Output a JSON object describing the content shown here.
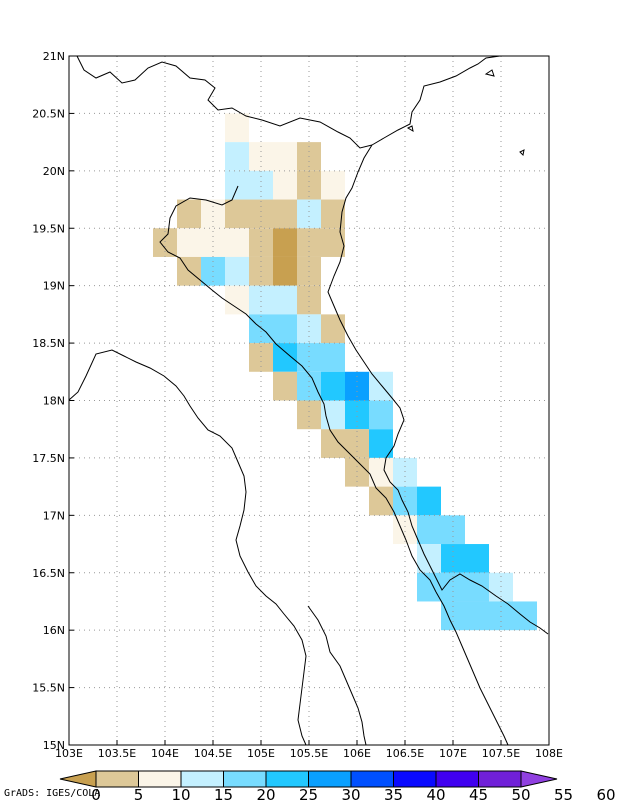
{
  "chart_data": {
    "type": "heatmap",
    "x_ticks": [
      "103E",
      "103.5E",
      "104E",
      "104.5E",
      "105E",
      "105.5E",
      "106E",
      "106.5E",
      "107E",
      "107.5E",
      "108E"
    ],
    "y_ticks": [
      "21N",
      "20.5N",
      "20N",
      "19.5N",
      "19N",
      "18.5N",
      "18N",
      "17.5N",
      "17N",
      "16.5N",
      "16N",
      "15.5N",
      "15N"
    ],
    "xlim": [
      103,
      108
    ],
    "ylim": [
      15,
      21
    ],
    "grid": true,
    "cell_size_deg": 0.25,
    "colorbar": {
      "labels": [
        "0",
        "5",
        "10",
        "15",
        "20",
        "25",
        "30",
        "35",
        "40",
        "45",
        "50",
        "55",
        "60"
      ],
      "colors": [
        "#c8a050",
        "#ddc898",
        "#fbf5e8",
        "#c4f0ff",
        "#78dcff",
        "#22c8ff",
        "#0aa0ff",
        "#0050ff",
        "#0a0aff",
        "#4000f0",
        "#7020d8",
        "#9040e0"
      ]
    },
    "cells": [
      {
        "lon": 104.75,
        "lat": 20.375,
        "bin": 2
      },
      {
        "lon": 104.75,
        "lat": 20.125,
        "bin": 3
      },
      {
        "lon": 105.0,
        "lat": 20.125,
        "bin": 2
      },
      {
        "lon": 105.25,
        "lat": 20.125,
        "bin": 2
      },
      {
        "lon": 105.5,
        "lat": 20.125,
        "bin": 1
      },
      {
        "lon": 104.75,
        "lat": 19.875,
        "bin": 3
      },
      {
        "lon": 105.0,
        "lat": 19.875,
        "bin": 3
      },
      {
        "lon": 105.25,
        "lat": 19.875,
        "bin": 2
      },
      {
        "lon": 105.5,
        "lat": 19.875,
        "bin": 1
      },
      {
        "lon": 105.75,
        "lat": 19.875,
        "bin": 2
      },
      {
        "lon": 104.25,
        "lat": 19.625,
        "bin": 1
      },
      {
        "lon": 104.5,
        "lat": 19.625,
        "bin": 2
      },
      {
        "lon": 104.75,
        "lat": 19.625,
        "bin": 1
      },
      {
        "lon": 105.0,
        "lat": 19.625,
        "bin": 1
      },
      {
        "lon": 105.25,
        "lat": 19.625,
        "bin": 1
      },
      {
        "lon": 105.5,
        "lat": 19.625,
        "bin": 3
      },
      {
        "lon": 105.75,
        "lat": 19.625,
        "bin": 1
      },
      {
        "lon": 104.0,
        "lat": 19.375,
        "bin": 1
      },
      {
        "lon": 104.25,
        "lat": 19.375,
        "bin": 2
      },
      {
        "lon": 104.5,
        "lat": 19.375,
        "bin": 2
      },
      {
        "lon": 104.75,
        "lat": 19.375,
        "bin": 2
      },
      {
        "lon": 105.0,
        "lat": 19.375,
        "bin": 1
      },
      {
        "lon": 105.25,
        "lat": 19.375,
        "bin": 0
      },
      {
        "lon": 105.5,
        "lat": 19.375,
        "bin": 1
      },
      {
        "lon": 105.75,
        "lat": 19.375,
        "bin": 1
      },
      {
        "lon": 104.25,
        "lat": 19.125,
        "bin": 1
      },
      {
        "lon": 104.5,
        "lat": 19.125,
        "bin": 4
      },
      {
        "lon": 104.75,
        "lat": 19.125,
        "bin": 3
      },
      {
        "lon": 105.0,
        "lat": 19.125,
        "bin": 1
      },
      {
        "lon": 105.25,
        "lat": 19.125,
        "bin": 0
      },
      {
        "lon": 105.5,
        "lat": 19.125,
        "bin": 1
      },
      {
        "lon": 104.75,
        "lat": 18.875,
        "bin": 2
      },
      {
        "lon": 105.0,
        "lat": 18.875,
        "bin": 3
      },
      {
        "lon": 105.25,
        "lat": 18.875,
        "bin": 3
      },
      {
        "lon": 105.5,
        "lat": 18.875,
        "bin": 1
      },
      {
        "lon": 105.0,
        "lat": 18.625,
        "bin": 4
      },
      {
        "lon": 105.25,
        "lat": 18.625,
        "bin": 4
      },
      {
        "lon": 105.5,
        "lat": 18.625,
        "bin": 3
      },
      {
        "lon": 105.75,
        "lat": 18.625,
        "bin": 1
      },
      {
        "lon": 105.0,
        "lat": 18.375,
        "bin": 1
      },
      {
        "lon": 105.25,
        "lat": 18.375,
        "bin": 5
      },
      {
        "lon": 105.5,
        "lat": 18.375,
        "bin": 4
      },
      {
        "lon": 105.75,
        "lat": 18.375,
        "bin": 4
      },
      {
        "lon": 105.25,
        "lat": 18.125,
        "bin": 1
      },
      {
        "lon": 105.5,
        "lat": 18.125,
        "bin": 4
      },
      {
        "lon": 105.75,
        "lat": 18.125,
        "bin": 5
      },
      {
        "lon": 106.0,
        "lat": 18.125,
        "bin": 6
      },
      {
        "lon": 106.25,
        "lat": 18.125,
        "bin": 3
      },
      {
        "lon": 105.5,
        "lat": 17.875,
        "bin": 1
      },
      {
        "lon": 105.75,
        "lat": 17.875,
        "bin": 3
      },
      {
        "lon": 106.0,
        "lat": 17.875,
        "bin": 5
      },
      {
        "lon": 106.25,
        "lat": 17.875,
        "bin": 4
      },
      {
        "lon": 105.75,
        "lat": 17.625,
        "bin": 1
      },
      {
        "lon": 106.0,
        "lat": 17.625,
        "bin": 1
      },
      {
        "lon": 106.25,
        "lat": 17.625,
        "bin": 5
      },
      {
        "lon": 106.0,
        "lat": 17.375,
        "bin": 1
      },
      {
        "lon": 106.25,
        "lat": 17.375,
        "bin": 2
      },
      {
        "lon": 106.5,
        "lat": 17.375,
        "bin": 3
      },
      {
        "lon": 106.25,
        "lat": 17.125,
        "bin": 1
      },
      {
        "lon": 106.5,
        "lat": 17.125,
        "bin": 4
      },
      {
        "lon": 106.75,
        "lat": 17.125,
        "bin": 5
      },
      {
        "lon": 106.5,
        "lat": 16.875,
        "bin": 2
      },
      {
        "lon": 106.75,
        "lat": 16.875,
        "bin": 4
      },
      {
        "lon": 107.0,
        "lat": 16.875,
        "bin": 4
      },
      {
        "lon": 106.75,
        "lat": 16.625,
        "bin": 3
      },
      {
        "lon": 107.0,
        "lat": 16.625,
        "bin": 5
      },
      {
        "lon": 107.25,
        "lat": 16.625,
        "bin": 5
      },
      {
        "lon": 106.75,
        "lat": 16.375,
        "bin": 4
      },
      {
        "lon": 107.0,
        "lat": 16.375,
        "bin": 4
      },
      {
        "lon": 107.25,
        "lat": 16.375,
        "bin": 4
      },
      {
        "lon": 107.5,
        "lat": 16.375,
        "bin": 3
      },
      {
        "lon": 107.0,
        "lat": 16.125,
        "bin": 4
      },
      {
        "lon": 107.25,
        "lat": 16.125,
        "bin": 4
      },
      {
        "lon": 107.5,
        "lat": 16.125,
        "bin": 4
      },
      {
        "lon": 107.75,
        "lat": 16.125,
        "bin": 4
      }
    ]
  },
  "credit": "GrADS: IGES/COLA"
}
